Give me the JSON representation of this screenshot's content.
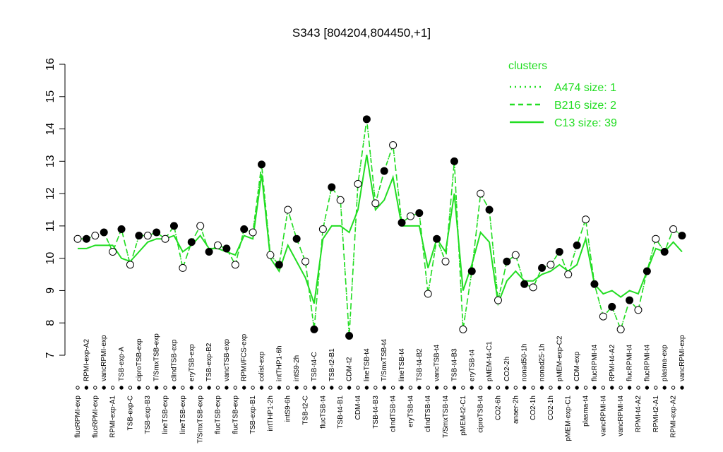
{
  "chart_data": {
    "type": "line",
    "title": "S343 [804204,804450,+1]",
    "legend_title": "clusters",
    "legend_position": "top-right",
    "ylim": [
      7,
      16
    ],
    "yticks": [
      7,
      8,
      9,
      10,
      11,
      12,
      13,
      14,
      15,
      16
    ],
    "categories": [
      "flucRPMI-exp",
      "RPMI-exp-A2",
      "flucRPMI-exp",
      "vancRPMI-exp",
      "RPMI-exp-A1",
      "TSB-exp-A",
      "TSB-exp-C",
      "ciproTSB-exp",
      "TSB-exp-B3",
      "T/SmxTSB-exp",
      "lineTSB-exp",
      "clindTSB-exp",
      "lineTSB-exp",
      "eryTSB-exp",
      "T/SmxTSB-exp",
      "TSB-exp-B2",
      "flucTSB-exp",
      "vancTSB-exp",
      "flucTSB-exp",
      "RPMI/FCS-exp",
      "TSB-exp-B1",
      "colist-exp",
      "intTHP1-2h",
      "intTHP1-6h",
      "intS9-6h",
      "intS9-2h",
      "TSB-t2-C",
      "TSB-t4-C",
      "flucTSB-t4",
      "TSB-t2-B1",
      "TSB-t4-B1",
      "CDM-t2",
      "CDM-t4",
      "lineTSB-t4",
      "TSB-t4-B3",
      "T/SmxTSB-t4",
      "clindTSB-t4",
      "lineTSB-t4",
      "eryTSB-t4",
      "TSB-t4-B2",
      "clindTSB-t4",
      "vancTSB-t4",
      "T/SmxTSB-t4",
      "TSB-t4-B3",
      "pMEM-t2-C1",
      "eryTSB-t4",
      "ciproTSB-t4",
      "pMEM-t4-C1",
      "CO2-6h",
      "CO2-2h",
      "anaer-2h",
      "nonad50-1h",
      "CO2-1h",
      "nonad25-1h",
      "CO2-1h",
      "pMEM-exp-C2",
      "pMEM-exp-C1",
      "CDM-exp",
      "plasma-t4",
      "flucRPMI-t4",
      "vancRPMI-t4",
      "RPMI-t4-A2",
      "vancRPMI-t4",
      "flucRPMI-t4",
      "RPMI-t4-A2",
      "flucRPMI-t4",
      "RPMI-t2-A1",
      "plasma-exp",
      "RPMI-exp-A2",
      "vancRPMI-exp"
    ],
    "series": [
      {
        "name": "A474 size: 1",
        "color": "#22dd22",
        "style": "dotted",
        "values": [
          10.6,
          10.6,
          10.7,
          10.8,
          10.2,
          10.9,
          9.8,
          10.7,
          10.7,
          10.8,
          10.6,
          11.0,
          9.7,
          10.5,
          11.0,
          10.2,
          10.4,
          10.3,
          9.8,
          10.9,
          10.8,
          12.9,
          10.1,
          9.8,
          11.5,
          10.6,
          9.9,
          7.8,
          10.9,
          12.2,
          11.8,
          7.6,
          12.3,
          14.3,
          11.7,
          12.7,
          13.5,
          11.1,
          11.3,
          11.4,
          8.9,
          10.6,
          9.9,
          13.0,
          7.8,
          9.6,
          12.0,
          11.5,
          8.7,
          9.9,
          10.1,
          9.2,
          9.1,
          9.7,
          9.8,
          10.2,
          9.5,
          10.4,
          11.2,
          9.2,
          8.2,
          8.5,
          7.8,
          8.7,
          8.4,
          9.6,
          10.6,
          10.2,
          10.9,
          10.7
        ]
      },
      {
        "name": "B216 size: 2",
        "color": "#22dd22",
        "style": "dashed",
        "values": [
          10.6,
          10.6,
          10.7,
          10.8,
          10.2,
          10.9,
          9.8,
          10.7,
          10.7,
          10.8,
          10.6,
          11.0,
          9.7,
          10.5,
          11.0,
          10.2,
          10.4,
          10.3,
          9.8,
          10.9,
          10.8,
          12.9,
          10.1,
          9.8,
          11.5,
          10.6,
          9.9,
          7.8,
          10.9,
          12.2,
          11.8,
          7.6,
          12.3,
          14.3,
          11.7,
          12.7,
          13.5,
          11.1,
          11.3,
          11.4,
          8.9,
          10.6,
          9.9,
          13.0,
          7.8,
          9.6,
          12.0,
          11.5,
          8.7,
          9.9,
          10.1,
          9.2,
          9.1,
          9.7,
          9.8,
          10.2,
          9.5,
          10.4,
          11.2,
          9.2,
          8.2,
          8.5,
          7.8,
          8.7,
          8.4,
          9.6,
          10.6,
          10.2,
          10.9,
          10.7
        ]
      },
      {
        "name": "C13 size: 39",
        "color": "#22dd22",
        "style": "solid",
        "values": [
          10.3,
          10.3,
          10.4,
          10.4,
          10.4,
          10.0,
          9.9,
          10.2,
          10.5,
          10.6,
          10.6,
          10.7,
          10.2,
          10.4,
          10.7,
          10.3,
          10.3,
          10.2,
          10.1,
          10.7,
          10.6,
          12.6,
          10.0,
          9.6,
          10.4,
          9.9,
          9.4,
          8.6,
          10.6,
          11.0,
          11.0,
          10.8,
          11.5,
          13.2,
          11.5,
          11.8,
          12.5,
          11.0,
          11.0,
          11.0,
          9.7,
          10.6,
          10.2,
          12.0,
          9.0,
          9.8,
          10.8,
          10.5,
          8.6,
          9.3,
          9.6,
          9.3,
          9.3,
          9.5,
          9.6,
          9.8,
          9.6,
          9.8,
          10.6,
          9.2,
          8.9,
          9.0,
          8.8,
          9.0,
          8.9,
          9.6,
          10.3,
          10.2,
          10.5,
          10.2
        ]
      }
    ]
  }
}
